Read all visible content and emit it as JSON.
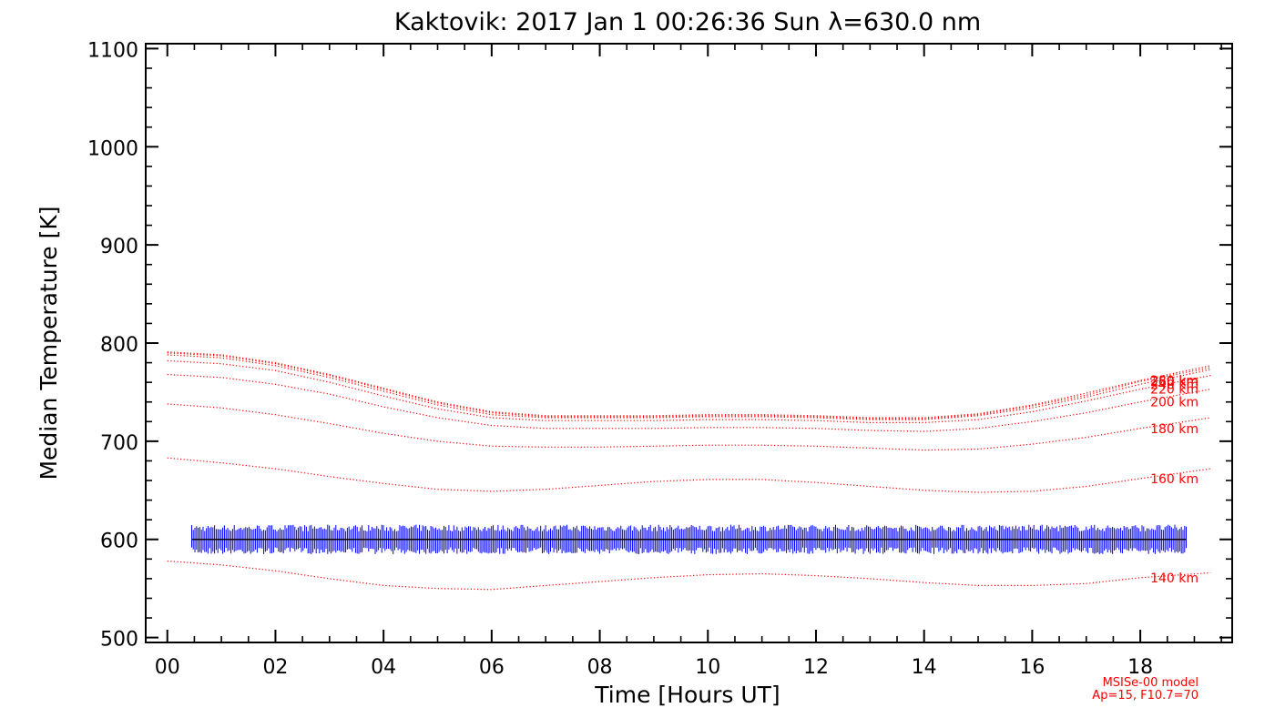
{
  "chart_data": {
    "type": "line",
    "title": "Kaktovik: 2017 Jan  1 00:26:36 Sun λ=630.0 nm",
    "xlabel": "Time [Hours UT]",
    "ylabel": "Median Temperature [K]",
    "xlim": [
      -0.4,
      19.7
    ],
    "ylim": [
      495,
      1105
    ],
    "xticks": [
      "00",
      "02",
      "04",
      "06",
      "08",
      "10",
      "12",
      "14",
      "16",
      "18"
    ],
    "yticks": [
      "500",
      "600",
      "700",
      "800",
      "900",
      "1000",
      "1100"
    ],
    "grid": false,
    "model_curves": {
      "color": "#ff0000",
      "x": [
        0,
        1,
        2,
        3,
        4,
        5,
        6,
        7,
        8,
        9,
        10,
        11,
        12,
        13,
        14,
        15,
        16,
        17,
        18,
        19.3
      ],
      "series": [
        {
          "name": "140 km",
          "values": [
            578,
            574,
            568,
            560,
            553,
            550,
            549,
            553,
            557,
            561,
            564,
            565,
            563,
            560,
            556,
            553,
            553,
            555,
            561,
            566
          ]
        },
        {
          "name": "160 km",
          "values": [
            683,
            678,
            672,
            664,
            657,
            651,
            649,
            651,
            655,
            659,
            661,
            661,
            658,
            654,
            650,
            648,
            649,
            654,
            662,
            672
          ]
        },
        {
          "name": "180 km",
          "values": [
            738,
            734,
            727,
            718,
            708,
            700,
            695,
            694,
            694,
            695,
            696,
            696,
            695,
            693,
            691,
            692,
            697,
            704,
            713,
            724
          ]
        },
        {
          "name": "200 km",
          "values": [
            768,
            765,
            758,
            748,
            735,
            724,
            716,
            713,
            713,
            713,
            714,
            714,
            713,
            711,
            710,
            713,
            720,
            729,
            740,
            753
          ]
        },
        {
          "name": "220 km",
          "values": [
            782,
            779,
            772,
            760,
            746,
            733,
            724,
            721,
            721,
            721,
            722,
            722,
            721,
            719,
            719,
            722,
            730,
            741,
            753,
            767
          ]
        },
        {
          "name": "240 km",
          "values": [
            788,
            785,
            777,
            765,
            751,
            737,
            727,
            724,
            724,
            724,
            725,
            725,
            724,
            722,
            722,
            726,
            734,
            745,
            758,
            773
          ]
        },
        {
          "name": "260 km",
          "values": [
            790,
            787,
            779,
            767,
            753,
            739,
            729,
            725,
            725,
            725,
            726,
            726,
            725,
            723,
            723,
            727,
            736,
            747,
            761,
            775
          ]
        },
        {
          "name": "280 km",
          "values": [
            791,
            788,
            780,
            768,
            754,
            740,
            730,
            726,
            726,
            726,
            727,
            727,
            726,
            724,
            724,
            728,
            737,
            749,
            762,
            777
          ]
        }
      ]
    },
    "measurement": {
      "color": "#0000ff",
      "x_start": 0.45,
      "x_end": 18.85,
      "median": 600,
      "spread": 15
    },
    "annotations": [
      "MSISe-00 model",
      "Ap=15, F10.7=70"
    ]
  }
}
